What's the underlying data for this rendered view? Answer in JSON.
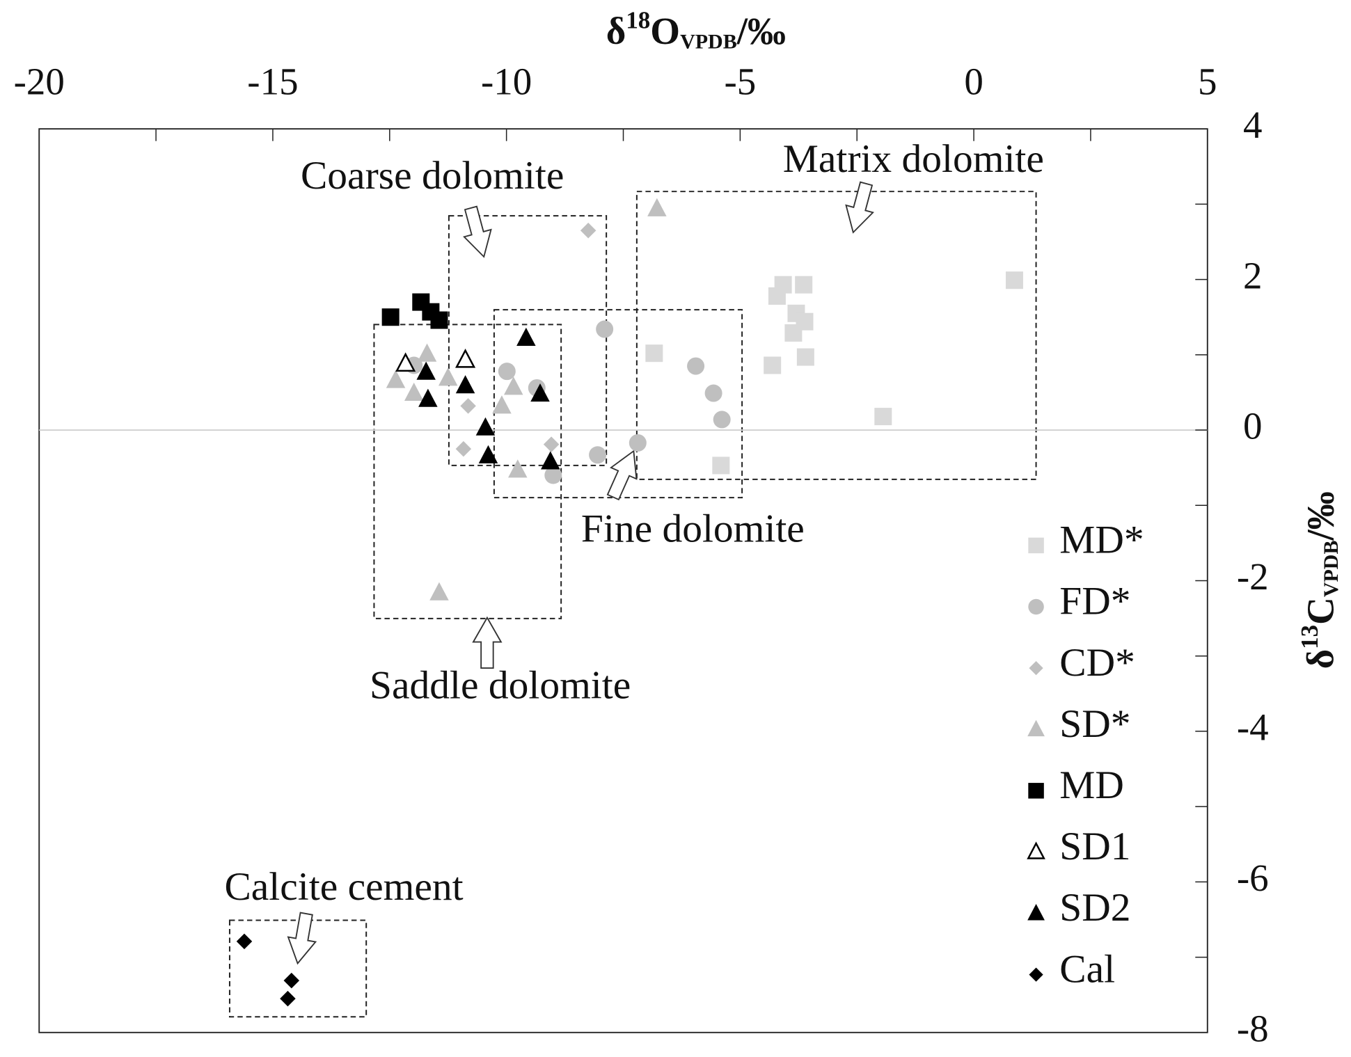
{
  "chart_data": {
    "type": "scatter",
    "x_label": {
      "symbol": "δ",
      "mass": "18",
      "element": "O",
      "standard": "VPDB",
      "unit": "/‰"
    },
    "y_label": {
      "symbol": "δ",
      "mass": "13",
      "element": "C",
      "standard": "VPDB",
      "unit": "/‰"
    },
    "xlim": [
      -20,
      5
    ],
    "xticks": [
      -20,
      -15,
      -10,
      -5,
      0,
      5
    ],
    "ylim": [
      -8,
      4
    ],
    "yticks": [
      -8,
      -6,
      -4,
      -2,
      0,
      2,
      4
    ],
    "zero_line": true,
    "legend": "lower right",
    "annotations": [
      "Coarse dolomite",
      "Matrix dolomite",
      "Fine dolomite",
      "Saddle dolomite",
      "Calcite cement"
    ],
    "series": [
      {
        "name": "MD*",
        "color": "#d9d9d9",
        "marker": "square",
        "x": [
          -6.84,
          -1.94,
          0.87,
          -4.31,
          -4.21,
          -4.08,
          -3.64,
          -3.8,
          -3.62,
          -3.86,
          -3.6,
          -5.41
        ],
        "y": [
          1.02,
          0.18,
          1.99,
          0.86,
          1.78,
          1.93,
          1.93,
          1.55,
          1.44,
          1.29,
          0.97,
          -0.47
        ]
      },
      {
        "name": "FD*",
        "color": "#bfbfbf",
        "marker": "circle",
        "x": [
          -7.9,
          -5.95,
          -5.57,
          -5.39,
          -7.19,
          -8.05,
          -9.35,
          -9.99,
          -9.0,
          -11.98
        ],
        "y": [
          1.34,
          0.85,
          0.49,
          0.14,
          -0.17,
          -0.33,
          0.56,
          0.78,
          -0.6,
          0.86
        ]
      },
      {
        "name": "CD*",
        "color": "#bfbfbf",
        "marker": "diamond",
        "x": [
          -8.25,
          -10.82,
          -10.92,
          -9.04
        ],
        "y": [
          2.65,
          0.32,
          -0.25,
          -0.19
        ]
      },
      {
        "name": "SD*",
        "color": "#bfbfbf",
        "marker": "triangle",
        "x": [
          -6.78,
          -11.7,
          -12.37,
          -11.98,
          -11.25,
          -10.1,
          -9.85,
          -9.76,
          -11.44
        ],
        "y": [
          2.94,
          1.01,
          0.66,
          0.49,
          0.69,
          0.32,
          0.57,
          -0.53,
          -2.16
        ]
      },
      {
        "name": "MD",
        "color": "#000000",
        "marker": "square",
        "x": [
          -12.48,
          -11.83,
          -11.62,
          -11.44
        ],
        "y": [
          1.5,
          1.7,
          1.57,
          1.46
        ]
      },
      {
        "name": "SD1",
        "color": "#000000",
        "marker": "triangle-open",
        "x": [
          -12.16,
          -10.88
        ],
        "y": [
          0.88,
          0.93
        ]
      },
      {
        "name": "SD2",
        "color": "#000000",
        "marker": "triangle",
        "x": [
          -9.58,
          -11.72,
          -11.68,
          -10.88,
          -9.28,
          -10.45,
          -10.39,
          -9.06
        ],
        "y": [
          1.22,
          0.77,
          0.41,
          0.59,
          0.48,
          0.03,
          -0.34,
          -0.42
        ]
      },
      {
        "name": "Cal",
        "color": "#000000",
        "marker": "diamond",
        "x": [
          -15.61,
          -14.6,
          -14.68
        ],
        "y": [
          -6.79,
          -7.31,
          -7.55
        ]
      }
    ]
  }
}
